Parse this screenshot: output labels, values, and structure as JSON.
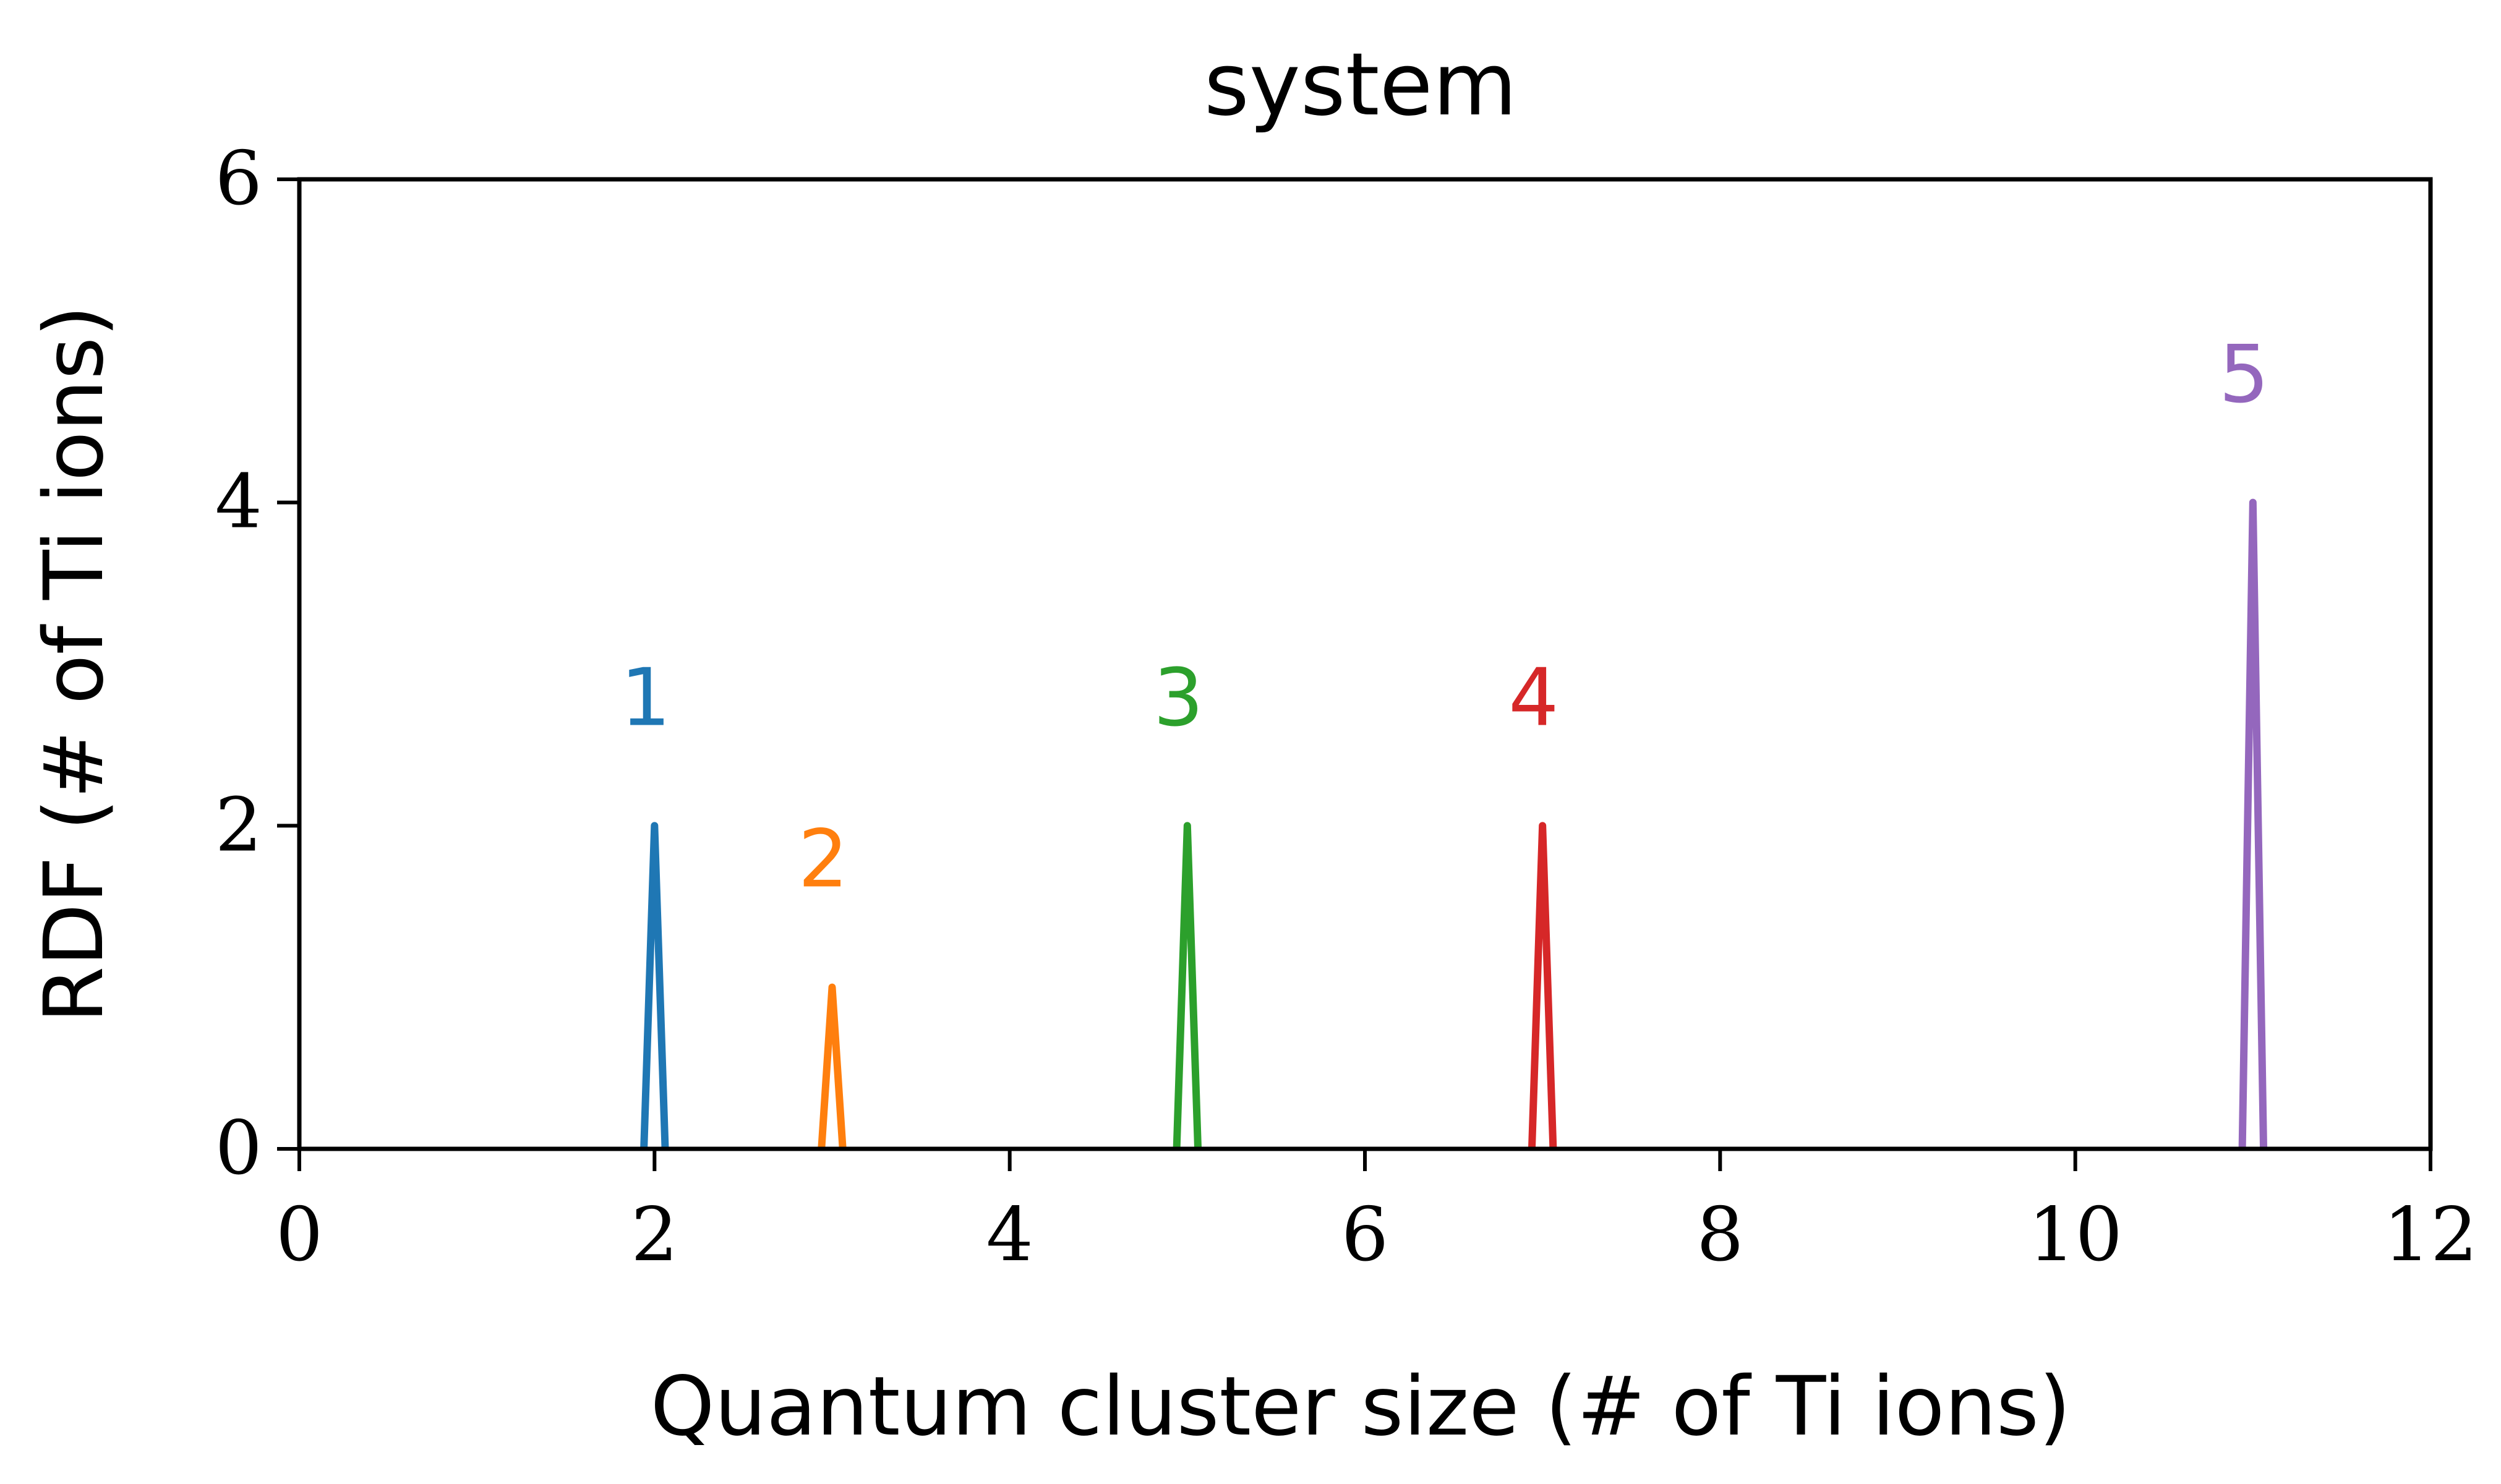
{
  "chart_data": {
    "type": "line",
    "title": "system",
    "xlabel": "Quantum cluster size (# of Ti ions)",
    "ylabel": "RDF (# of Ti ions)",
    "xlim": [
      0,
      12
    ],
    "ylim": [
      0,
      6
    ],
    "xticks": [
      0,
      2,
      4,
      6,
      8,
      10,
      12
    ],
    "yticks": [
      0,
      2,
      4,
      6
    ],
    "grid": false,
    "series": [
      {
        "name": "1",
        "color": "#1f77b4",
        "points": [
          [
            1.94,
            0
          ],
          [
            2,
            2
          ],
          [
            2.06,
            0
          ]
        ],
        "label_at": [
          1.95,
          2.8
        ]
      },
      {
        "name": "2",
        "color": "#ff7f0e",
        "points": [
          [
            2.94,
            0
          ],
          [
            3,
            1
          ],
          [
            3.06,
            0
          ]
        ],
        "label_at": [
          2.95,
          1.8
        ]
      },
      {
        "name": "3",
        "color": "#2ca02c",
        "points": [
          [
            4.94,
            0
          ],
          [
            5,
            2
          ],
          [
            5.06,
            0
          ]
        ],
        "label_at": [
          4.95,
          2.8
        ]
      },
      {
        "name": "4",
        "color": "#d62728",
        "points": [
          [
            6.94,
            0
          ],
          [
            7,
            2
          ],
          [
            7.06,
            0
          ]
        ],
        "label_at": [
          6.95,
          2.8
        ]
      },
      {
        "name": "5",
        "color": "#9467bd",
        "points": [
          [
            10.94,
            0
          ],
          [
            11,
            4
          ],
          [
            11.06,
            0
          ]
        ],
        "label_at": [
          10.95,
          4.8
        ]
      }
    ]
  }
}
